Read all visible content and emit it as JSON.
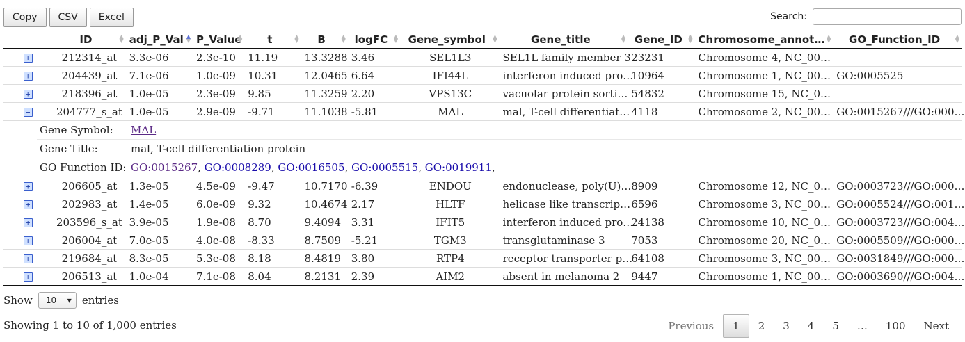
{
  "toolbar": {
    "copy": "Copy",
    "csv": "CSV",
    "excel": "Excel"
  },
  "search": {
    "label": "Search:",
    "value": ""
  },
  "columns": [
    "ID",
    "adj_P_Val",
    "P_Value",
    "t",
    "B",
    "logFC",
    "Gene_symbol",
    "Gene_title",
    "Gene_ID",
    "Chromosome_annot…",
    "GO_Function_ID"
  ],
  "rows": [
    {
      "expanded": false,
      "ID": "212314_at",
      "adj": "3.3e-06",
      "p": "2.3e-10",
      "t": "11.19",
      "B": "13.3288",
      "logFC": "3.46",
      "sym": "SEL1L3",
      "title": "SEL1L family member 3",
      "gid": "23231",
      "chr": "Chromosome 4, NC_00…",
      "go": ""
    },
    {
      "expanded": false,
      "ID": "204439_at",
      "adj": "7.1e-06",
      "p": "1.0e-09",
      "t": "10.31",
      "B": "12.0465",
      "logFC": "6.64",
      "sym": "IFI44L",
      "title": "interferon induced pro…",
      "gid": "10964",
      "chr": "Chromosome 1, NC_00…",
      "go": "GO:0005525"
    },
    {
      "expanded": false,
      "ID": "218396_at",
      "adj": "1.0e-05",
      "p": "2.3e-09",
      "t": "9.85",
      "B": "11.3259",
      "logFC": "2.20",
      "sym": "VPS13C",
      "title": "vacuolar protein sorti…",
      "gid": "54832",
      "chr": "Chromosome 15, NC_0…",
      "go": ""
    },
    {
      "expanded": true,
      "ID": "204777_s_at",
      "adj": "1.0e-05",
      "p": "2.9e-09",
      "t": "-9.71",
      "B": "11.1038",
      "logFC": "-5.81",
      "sym": "MAL",
      "title": "mal, T-cell differentiat…",
      "gid": "4118",
      "chr": "Chromosome 2, NC_00…",
      "go": "GO:0015267///GO:000…"
    },
    {
      "expanded": false,
      "ID": "206605_at",
      "adj": "1.3e-05",
      "p": "4.5e-09",
      "t": "-9.47",
      "B": "10.7170",
      "logFC": "-6.39",
      "sym": "ENDOU",
      "title": "endonuclease, poly(U)…",
      "gid": "8909",
      "chr": "Chromosome 12, NC_0…",
      "go": "GO:0003723///GO:000…"
    },
    {
      "expanded": false,
      "ID": "202983_at",
      "adj": "1.4e-05",
      "p": "6.0e-09",
      "t": "9.32",
      "B": "10.4674",
      "logFC": "2.17",
      "sym": "HLTF",
      "title": "helicase like transcrip…",
      "gid": "6596",
      "chr": "Chromosome 3, NC_00…",
      "go": "GO:0005524///GO:001…"
    },
    {
      "expanded": false,
      "ID": "203596_s_at",
      "adj": "3.9e-05",
      "p": "1.9e-08",
      "t": "8.70",
      "B": "9.4094",
      "logFC": "3.31",
      "sym": "IFIT5",
      "title": "interferon induced pro…",
      "gid": "24138",
      "chr": "Chromosome 10, NC_0…",
      "go": "GO:0003723///GO:004…"
    },
    {
      "expanded": false,
      "ID": "206004_at",
      "adj": "7.0e-05",
      "p": "4.0e-08",
      "t": "-8.33",
      "B": "8.7509",
      "logFC": "-5.21",
      "sym": "TGM3",
      "title": "transglutaminase 3",
      "gid": "7053",
      "chr": "Chromosome 20, NC_0…",
      "go": "GO:0005509///GO:000…"
    },
    {
      "expanded": false,
      "ID": "219684_at",
      "adj": "8.3e-05",
      "p": "5.3e-08",
      "t": "8.18",
      "B": "8.4819",
      "logFC": "3.80",
      "sym": "RTP4",
      "title": "receptor transporter p…",
      "gid": "64108",
      "chr": "Chromosome 3, NC_00…",
      "go": "GO:0031849///GO:000…"
    },
    {
      "expanded": false,
      "ID": "206513_at",
      "adj": "1.0e-04",
      "p": "7.1e-08",
      "t": "8.04",
      "B": "8.2131",
      "logFC": "2.39",
      "sym": "AIM2",
      "title": "absent in melanoma 2",
      "gid": "9447",
      "chr": "Chromosome 1, NC_00…",
      "go": "GO:0003690///GO:004…"
    }
  ],
  "detail": {
    "sym_label": "Gene Symbol:",
    "sym_value": "MAL",
    "title_label": "Gene Title:",
    "title_value": "mal, T-cell differentiation protein",
    "go_label": "GO Function ID:",
    "go_links": [
      "GO:0015267",
      "GO:0008289",
      "GO:0016505",
      "GO:0005515",
      "GO:0019911"
    ]
  },
  "length": {
    "show": "Show",
    "value": "10",
    "entries": "entries"
  },
  "info": "Showing 1 to 10 of 1,000 entries",
  "pager": {
    "previous": "Previous",
    "pages": [
      "1",
      "2",
      "3",
      "4",
      "5",
      "…",
      "100"
    ],
    "next": "Next",
    "current": "1"
  },
  "colors": {
    "link": "#1a0dab",
    "visited": "#5b2a86",
    "icon_blue": "#3a5fcd"
  },
  "icons": {
    "expand": "plus-square-icon",
    "collapse": "minus-square-icon",
    "select": "chevron-down-icon"
  },
  "sort": {
    "column": "adj_P_Val",
    "direction": "ascending"
  }
}
